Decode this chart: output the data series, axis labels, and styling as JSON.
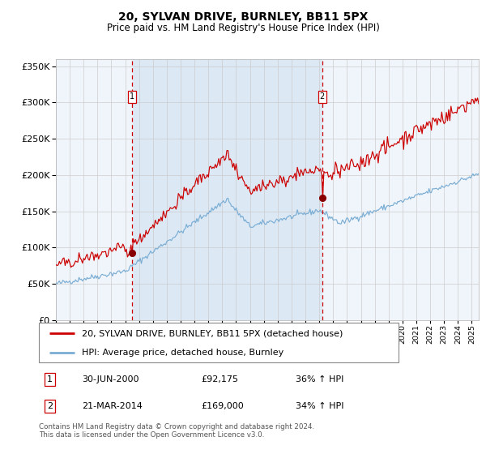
{
  "title": "20, SYLVAN DRIVE, BURNLEY, BB11 5PX",
  "subtitle": "Price paid vs. HM Land Registry's House Price Index (HPI)",
  "hpi_label": "HPI: Average price, detached house, Burnley",
  "property_label": "20, SYLVAN DRIVE, BURNLEY, BB11 5PX (detached house)",
  "transaction1_date": "30-JUN-2000",
  "transaction1_price": 92175,
  "transaction1_hpi": "36% ↑ HPI",
  "transaction2_date": "21-MAR-2014",
  "transaction2_price": 169000,
  "transaction2_hpi": "34% ↑ HPI",
  "footer": "Contains HM Land Registry data © Crown copyright and database right 2024.\nThis data is licensed under the Open Government Licence v3.0.",
  "ylim": [
    0,
    360000
  ],
  "yticks": [
    0,
    50000,
    100000,
    150000,
    200000,
    250000,
    300000,
    350000
  ],
  "year_start": 1995,
  "year_end": 2025,
  "bg_color": "#dce9f5",
  "line1_color": "#cc0000",
  "line2_color": "#7aadd4",
  "dot_color": "#880000",
  "vline_color": "#cc0000",
  "transaction1_year": 2000.5,
  "transaction2_year": 2014.21
}
